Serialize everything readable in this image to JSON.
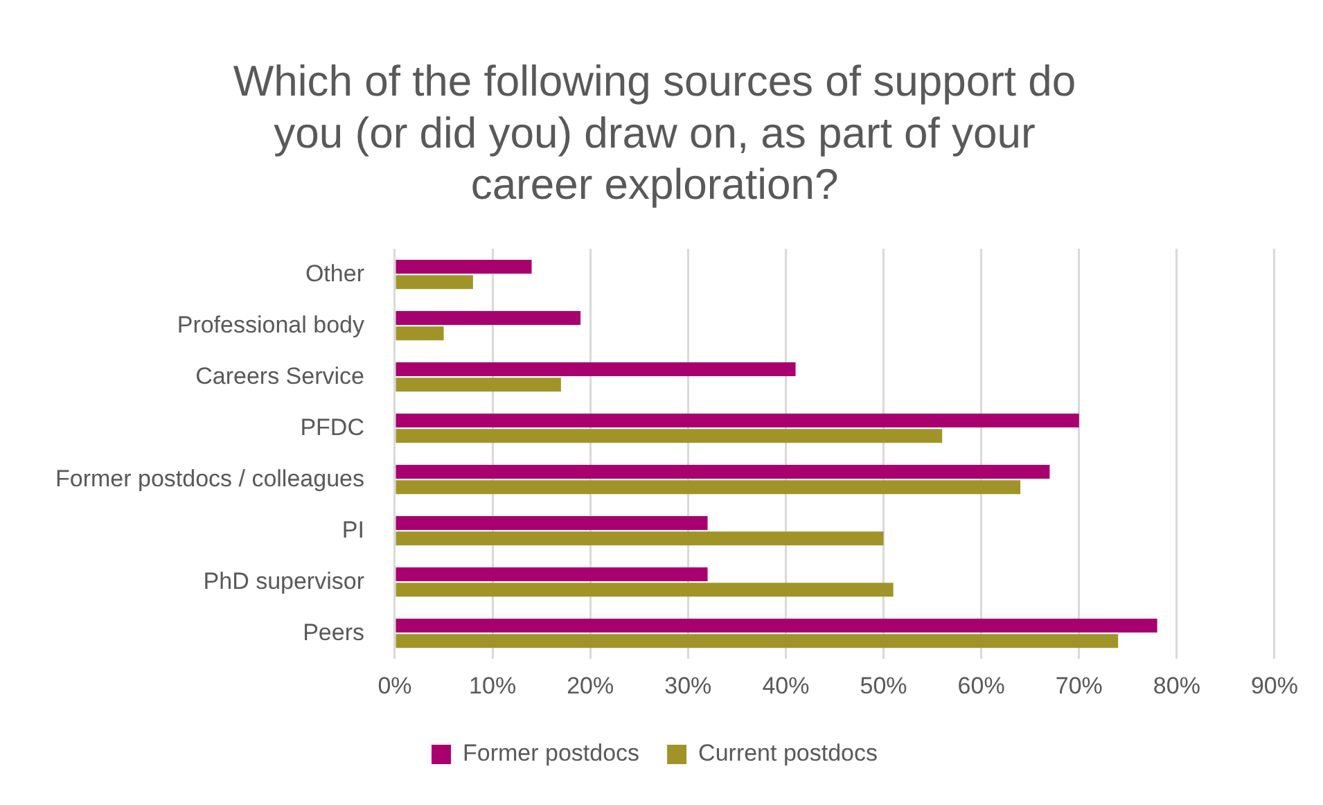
{
  "chart_data": {
    "type": "bar",
    "orientation": "horizontal",
    "title": "Which of the following sources of support do you (or did you) draw on, as part of your career exploration?",
    "categories": [
      "Other",
      "Professional body",
      "Careers Service",
      "PFDC",
      "Former postdocs / colleagues",
      "PI",
      "PhD supervisor",
      "Peers"
    ],
    "series": [
      {
        "name": "Former postdocs",
        "color": "#a8006f",
        "values": [
          14,
          19,
          41,
          70,
          67,
          32,
          32,
          78
        ]
      },
      {
        "name": "Current postdocs",
        "color": "#a09428",
        "values": [
          8,
          5,
          17,
          56,
          64,
          50,
          51,
          74
        ]
      }
    ],
    "xlim": [
      0,
      90
    ],
    "xticks": [
      {
        "value": 0,
        "label": "0%"
      },
      {
        "value": 10,
        "label": "10%"
      },
      {
        "value": 20,
        "label": "20%"
      },
      {
        "value": 30,
        "label": "30%"
      },
      {
        "value": 40,
        "label": "40%"
      },
      {
        "value": 50,
        "label": "50%"
      },
      {
        "value": 60,
        "label": "60%"
      },
      {
        "value": 70,
        "label": "70%"
      },
      {
        "value": 80,
        "label": "80%"
      },
      {
        "value": 90,
        "label": "90%"
      }
    ],
    "grid": "x",
    "legend": "bottom"
  }
}
